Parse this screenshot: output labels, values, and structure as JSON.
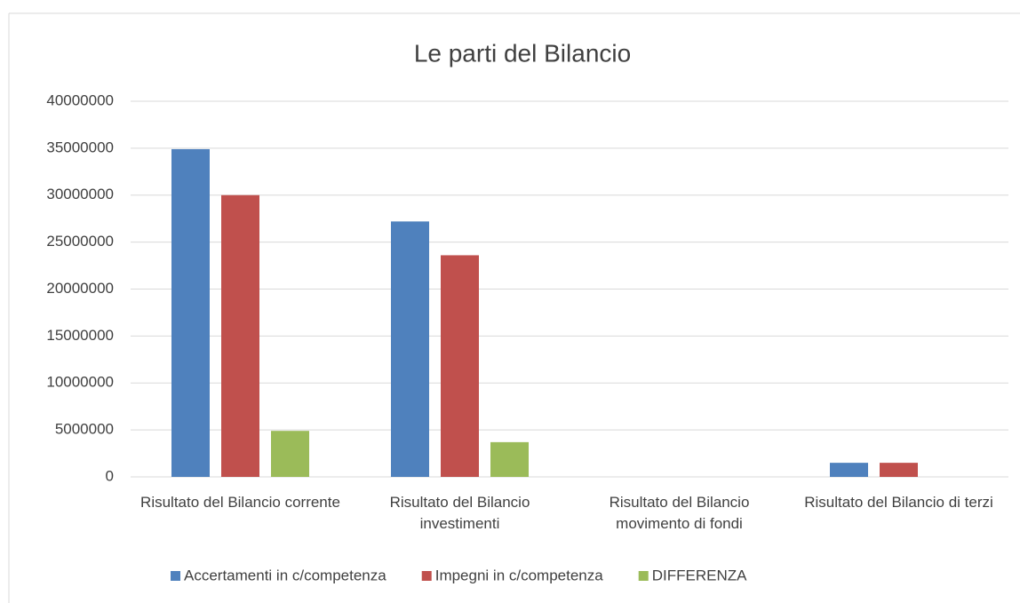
{
  "chart_data": {
    "type": "bar",
    "title": "Le parti del Bilancio",
    "categories": [
      "Risultato del Bilancio corrente",
      "Risultato del Bilancio investimenti",
      "Risultato del Bilancio movimento di fondi",
      "Risultato del Bilancio di terzi"
    ],
    "series": [
      {
        "name": "Accertamenti in c/competenza",
        "color": "#4f81bd",
        "values": [
          34900000,
          27200000,
          0,
          1500000
        ]
      },
      {
        "name": "Impegni in c/competenza",
        "color": "#c0504d",
        "values": [
          30000000,
          23600000,
          0,
          1500000
        ]
      },
      {
        "name": "DIFFERENZA",
        "color": "#9bbb59",
        "values": [
          4900000,
          3700000,
          0,
          0
        ]
      }
    ],
    "ylim": [
      0,
      40000000
    ],
    "yticks": [
      0,
      5000000,
      10000000,
      15000000,
      20000000,
      25000000,
      30000000,
      35000000,
      40000000
    ],
    "grid": true,
    "legend": "bottom"
  }
}
